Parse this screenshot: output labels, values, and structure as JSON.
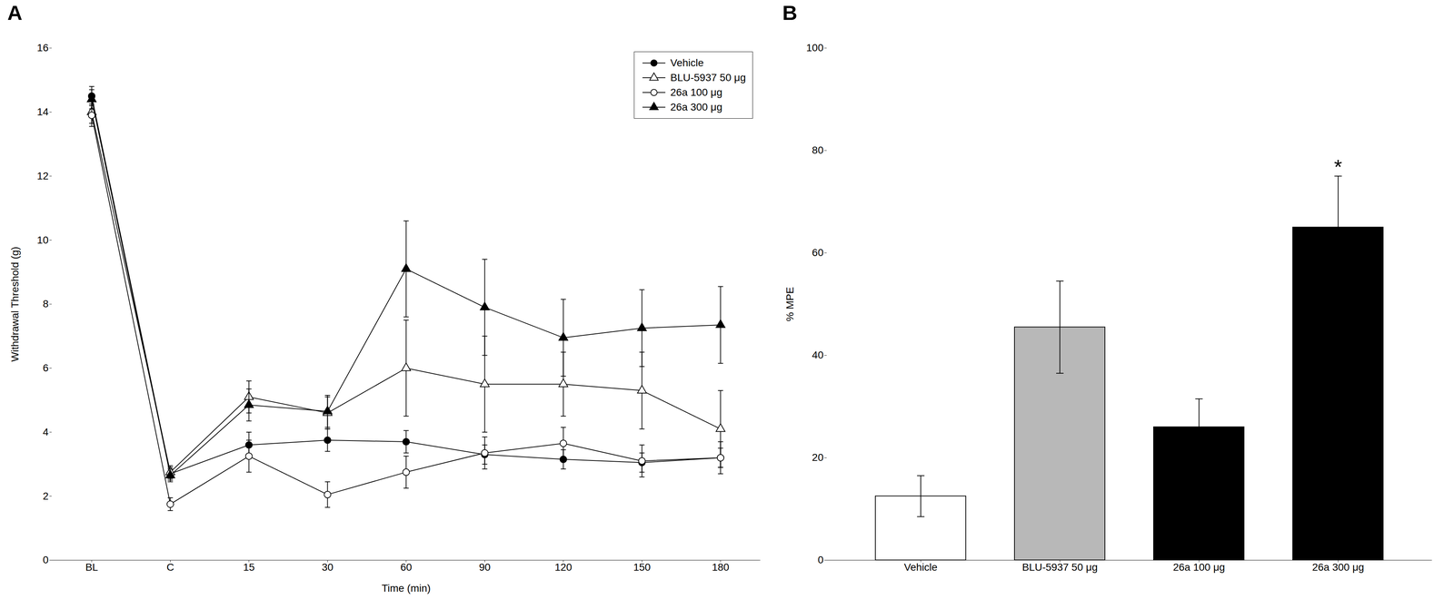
{
  "chart_data": [
    {
      "type": "line",
      "title": "A",
      "xlabel": "Time (min)",
      "ylabel": "Withdrawal Threshold (g)",
      "categories": [
        "BL",
        "C",
        "15",
        "30",
        "60",
        "90",
        "120",
        "150",
        "180"
      ],
      "series": [
        {
          "name": "Vehicle",
          "color": "#000000",
          "marker": "circle",
          "values": [
            14.5,
            2.7,
            3.6,
            3.75,
            3.7,
            3.3,
            3.15,
            3.05,
            3.2
          ],
          "yerr": [
            0.3,
            0.2,
            0.4,
            0.35,
            0.35,
            0.3,
            0.3,
            0.3,
            0.3
          ]
        },
        {
          "name": "BLU-5937 50 μg",
          "color": "#000000",
          "marker": "triangle_open",
          "values": [
            14.0,
            2.75,
            5.1,
            4.6,
            6.0,
            5.5,
            5.5,
            5.3,
            4.1
          ],
          "yerr": [
            0.35,
            0.2,
            0.5,
            0.5,
            1.5,
            1.5,
            1.0,
            1.2,
            1.2
          ]
        },
        {
          "name": "26a 100 μg",
          "color": "#000000",
          "marker": "circle_open",
          "values": [
            13.9,
            1.75,
            3.25,
            2.05,
            2.75,
            3.35,
            3.65,
            3.1,
            3.2
          ],
          "yerr": [
            0.35,
            0.2,
            0.5,
            0.4,
            0.5,
            0.5,
            0.5,
            0.5,
            0.5
          ]
        },
        {
          "name": "26a 300 μg",
          "color": "#000000",
          "marker": "triangle_down",
          "values": [
            14.4,
            2.65,
            4.85,
            4.65,
            9.1,
            7.9,
            6.95,
            7.25,
            7.35
          ],
          "yerr": [
            0.3,
            0.2,
            0.5,
            0.5,
            1.5,
            1.5,
            1.2,
            1.2,
            1.2
          ]
        }
      ],
      "ylim": [
        0,
        16
      ],
      "yticks": [
        0,
        2,
        4,
        6,
        8,
        10,
        12,
        14,
        16
      ],
      "legend": "upper right"
    },
    {
      "type": "bar",
      "title": "B",
      "ylabel": "% MPE",
      "categories": [
        "Vehicle",
        "BLU-5937 50 μg",
        "26a 100 μg",
        "26a 300 μg"
      ],
      "values": [
        12.5,
        45.5,
        26.0,
        65.0
      ],
      "yerr": [
        4.0,
        9.0,
        5.5,
        10.0
      ],
      "colors": [
        "#ffffff",
        "#b8b8b8",
        "#000000",
        "#000000"
      ],
      "ylim": [
        0,
        100
      ],
      "yticks": [
        0,
        20,
        40,
        60,
        80,
        100
      ],
      "annotations": [
        {
          "text": "*",
          "category": "26a 300 μg"
        }
      ]
    }
  ]
}
